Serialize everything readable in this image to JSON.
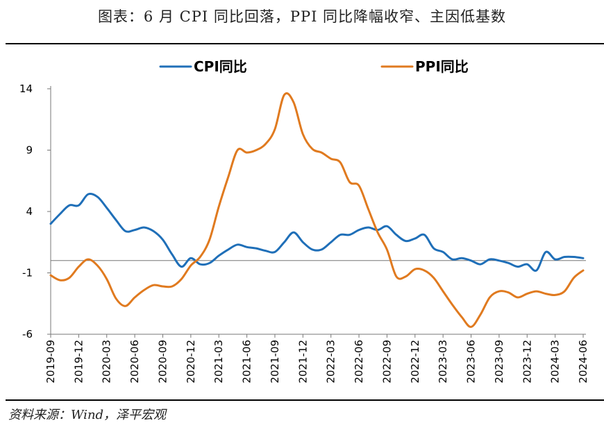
{
  "title": "图表：6 月 CPI 同比回落，PPI 同比降幅收窄、主因低基数",
  "source": "资料来源：Wind，泽平宏观",
  "colors": {
    "cpi": "#1f6fb8",
    "ppi": "#e07a1f",
    "axis": "#777777"
  },
  "chart_data": {
    "type": "line",
    "title": "图表：6 月 CPI 同比回落，PPI 同比降幅收窄、主因低基数",
    "xlabel": "",
    "ylabel": "",
    "ylim": [
      -6,
      14
    ],
    "yticks": [
      14,
      9,
      4,
      -1,
      -6
    ],
    "grid": false,
    "legend_position": "top",
    "x_ticks": [
      "2019-09",
      "2019-12",
      "2020-03",
      "2020-06",
      "2020-09",
      "2020-12",
      "2021-03",
      "2021-06",
      "2021-09",
      "2021-12",
      "2022-03",
      "2022-06",
      "2022-09",
      "2022-12",
      "2023-03",
      "2023-06",
      "2023-09",
      "2023-12",
      "2024-03",
      "2024-06"
    ],
    "x": [
      "2019-09",
      "2019-10",
      "2019-11",
      "2019-12",
      "2020-01",
      "2020-02",
      "2020-03",
      "2020-04",
      "2020-05",
      "2020-06",
      "2020-07",
      "2020-08",
      "2020-09",
      "2020-10",
      "2020-11",
      "2020-12",
      "2021-01",
      "2021-02",
      "2021-03",
      "2021-04",
      "2021-05",
      "2021-06",
      "2021-07",
      "2021-08",
      "2021-09",
      "2021-10",
      "2021-11",
      "2021-12",
      "2022-01",
      "2022-02",
      "2022-03",
      "2022-04",
      "2022-05",
      "2022-06",
      "2022-07",
      "2022-08",
      "2022-09",
      "2022-10",
      "2022-11",
      "2022-12",
      "2023-01",
      "2023-02",
      "2023-03",
      "2023-04",
      "2023-05",
      "2023-06",
      "2023-07",
      "2023-08",
      "2023-09",
      "2023-10",
      "2023-11",
      "2023-12",
      "2024-01",
      "2024-02",
      "2024-03",
      "2024-04",
      "2024-05",
      "2024-06"
    ],
    "series": [
      {
        "name": "CPI同比",
        "color": "#1f6fb8",
        "values": [
          3.0,
          3.8,
          4.5,
          4.5,
          5.4,
          5.2,
          4.3,
          3.3,
          2.4,
          2.5,
          2.7,
          2.4,
          1.7,
          0.5,
          -0.5,
          0.2,
          -0.3,
          -0.2,
          0.4,
          0.9,
          1.3,
          1.1,
          1.0,
          0.8,
          0.7,
          1.5,
          2.3,
          1.5,
          0.9,
          0.9,
          1.5,
          2.1,
          2.1,
          2.5,
          2.7,
          2.5,
          2.8,
          2.1,
          1.6,
          1.8,
          2.1,
          1.0,
          0.7,
          0.1,
          0.2,
          0.0,
          -0.3,
          0.1,
          0.0,
          -0.2,
          -0.5,
          -0.3,
          -0.8,
          0.7,
          0.1,
          0.3,
          0.3,
          0.2
        ]
      },
      {
        "name": "PPI同比",
        "color": "#e07a1f",
        "values": [
          -1.2,
          -1.6,
          -1.4,
          -0.5,
          0.1,
          -0.4,
          -1.5,
          -3.1,
          -3.7,
          -3.0,
          -2.4,
          -2.0,
          -2.1,
          -2.1,
          -1.5,
          -0.4,
          0.3,
          1.7,
          4.4,
          6.8,
          9.0,
          8.8,
          9.0,
          9.5,
          10.7,
          13.5,
          12.9,
          10.3,
          9.1,
          8.8,
          8.3,
          8.0,
          6.4,
          6.1,
          4.2,
          2.3,
          0.9,
          -1.3,
          -1.3,
          -0.7,
          -0.8,
          -1.4,
          -2.5,
          -3.6,
          -4.6,
          -5.4,
          -4.4,
          -3.0,
          -2.5,
          -2.6,
          -3.0,
          -2.7,
          -2.5,
          -2.7,
          -2.8,
          -2.5,
          -1.4,
          -0.8
        ]
      }
    ]
  }
}
